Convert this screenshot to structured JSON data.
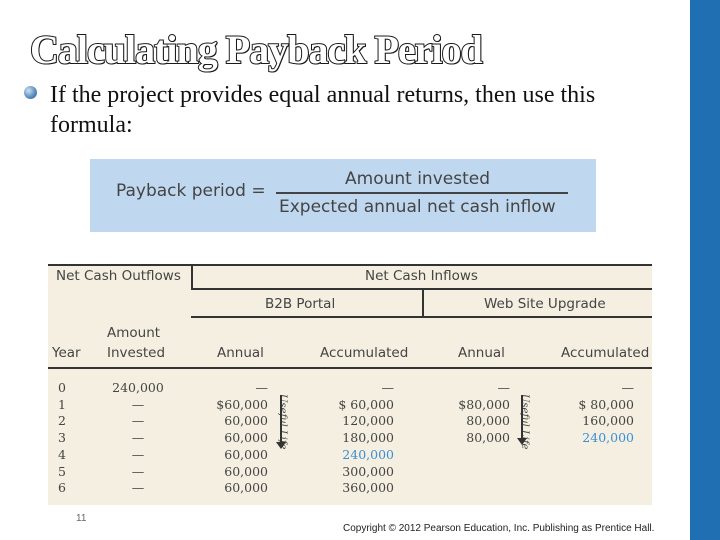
{
  "slide": {
    "title": "Calculating Payback Period",
    "bullet_text": "If the project provides equal annual returns, then use this formula:",
    "page_number": "11",
    "copyright": "Copyright © 2012 Pearson Education, Inc. Publishing as Prentice Hall.",
    "accent_color": "#1f6fb2"
  },
  "formula": {
    "lhs": "Payback period =",
    "numerator": "Amount invested",
    "denominator": "Expected annual net cash inflow",
    "box_color": "#bfd8ef"
  },
  "table": {
    "header_outflows": "Net Cash Outflows",
    "header_inflows": "Net Cash Inflows",
    "project_a": "B2B Portal",
    "project_b": "Web Site Upgrade",
    "col_year": "Year",
    "col_amount_1": "Amount",
    "col_amount_2": "Invested",
    "col_annual": "Annual",
    "col_accumulated": "Accumulated",
    "useful_life_label": "Useful Life",
    "highlight_color": "#3a8fd6",
    "rows": [
      {
        "year": "0",
        "invested": "240,000",
        "b2b_annual": "—",
        "b2b_accum": "—",
        "web_annual": "—",
        "web_accum": "—"
      },
      {
        "year": "1",
        "invested": "—",
        "b2b_annual": "$60,000",
        "b2b_accum": "$  60,000",
        "web_annual": "$80,000",
        "web_accum": "$  80,000"
      },
      {
        "year": "2",
        "invested": "—",
        "b2b_annual": "60,000",
        "b2b_accum": "120,000",
        "web_annual": "80,000",
        "web_accum": "160,000"
      },
      {
        "year": "3",
        "invested": "—",
        "b2b_annual": "60,000",
        "b2b_accum": "180,000",
        "web_annual": "80,000",
        "web_accum": "240,000"
      },
      {
        "year": "4",
        "invested": "—",
        "b2b_annual": "60,000",
        "b2b_accum": "240,000",
        "web_annual": "",
        "web_accum": ""
      },
      {
        "year": "5",
        "invested": "—",
        "b2b_annual": "60,000",
        "b2b_accum": "300,000",
        "web_annual": "",
        "web_accum": ""
      },
      {
        "year": "6",
        "invested": "—",
        "b2b_annual": "60,000",
        "b2b_accum": "360,000",
        "web_annual": "",
        "web_accum": ""
      }
    ],
    "highlighted_cells": {
      "b2b_accum_row": 4,
      "web_accum_row": 3
    }
  }
}
